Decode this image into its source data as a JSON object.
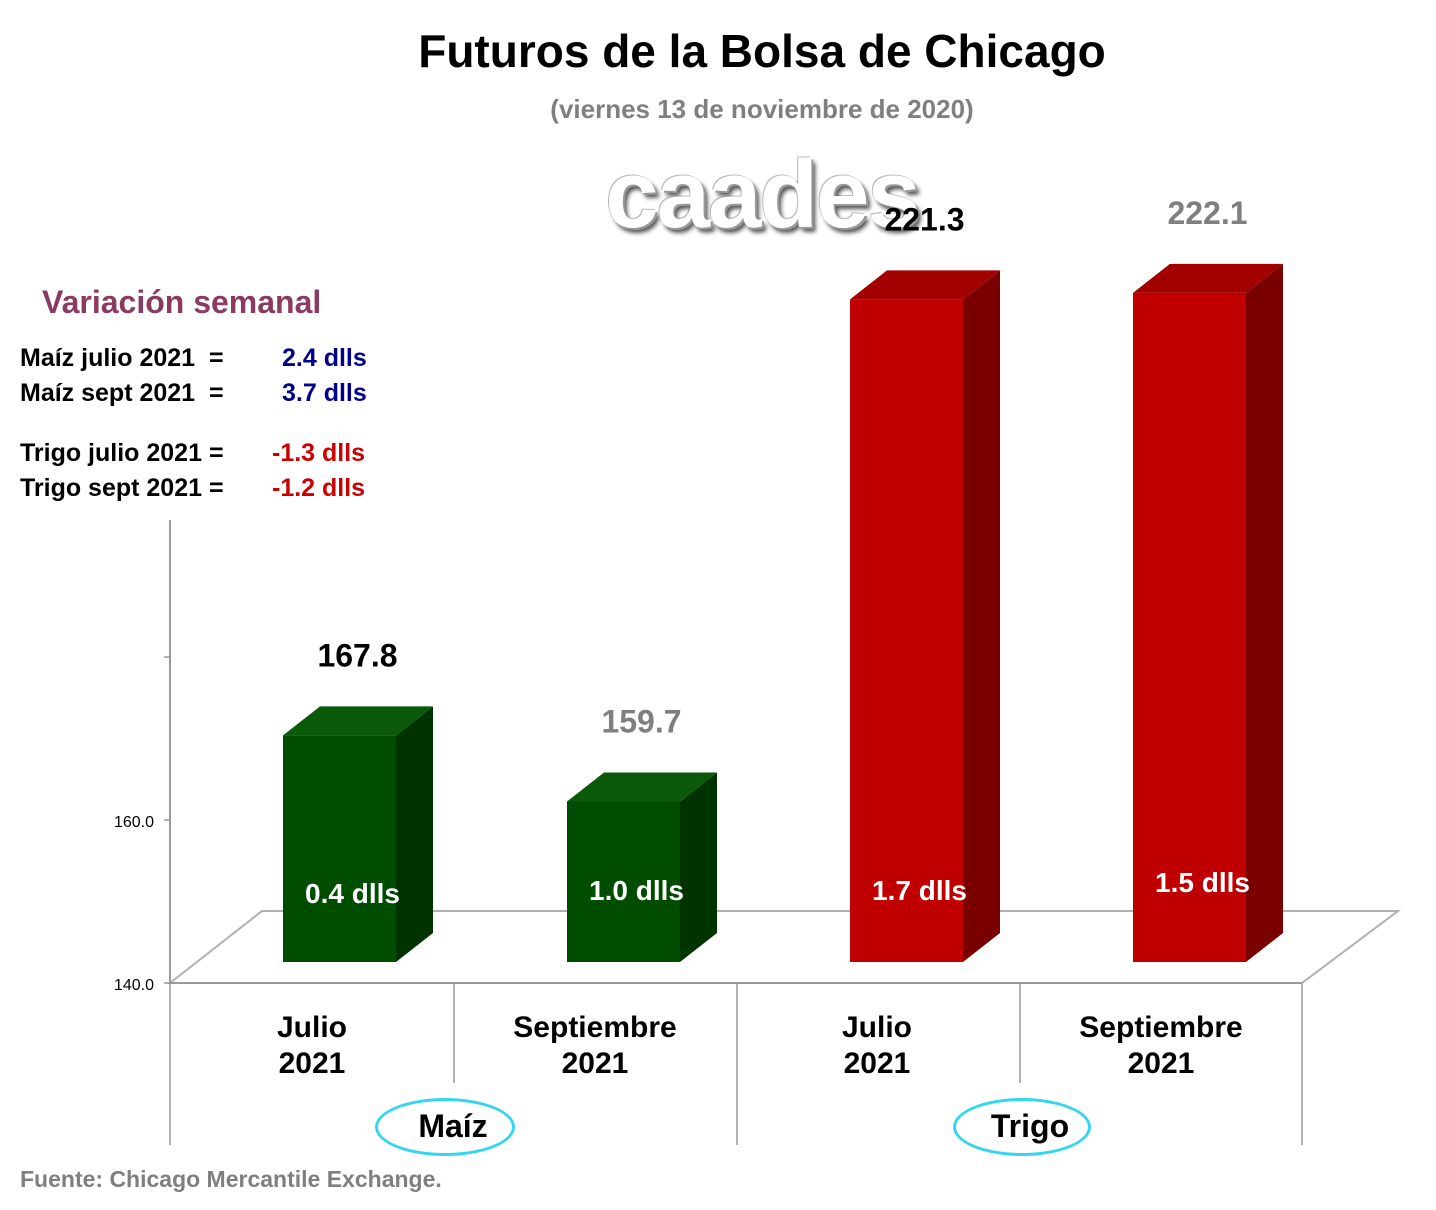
{
  "header": {
    "title": "Futuros de la Bolsa de Chicago",
    "subtitle": "(viernes 13 de noviembre de 2020)",
    "logo_text": "caades"
  },
  "variacion": {
    "title": "Variación semanal",
    "rows": [
      {
        "label": "Maíz julio 2021  =",
        "value": "2.4 dlls",
        "color": "#00008b"
      },
      {
        "label": "Maíz sept 2021  =",
        "value": "3.7 dlls",
        "color": "#00008b"
      },
      {
        "label": "Trigo julio 2021 =",
        "value": "-1.3 dlls",
        "color": "#cc0000"
      },
      {
        "label": "Trigo sept 2021 =",
        "value": "-1.2 dlls",
        "color": "#cc0000"
      }
    ]
  },
  "chart_data": {
    "type": "bar",
    "title": "Futuros de la Bolsa de Chicago",
    "subtitle": "(viernes 13 de noviembre de 2020)",
    "ylim": [
      140,
      230
    ],
    "yticks": [
      "140.0",
      "160.0"
    ],
    "categories": [
      "Julio\n2021",
      "Septiembre\n2021",
      "Julio\n2021",
      "Septiembre\n2021"
    ],
    "groups": [
      {
        "name": "Maíz",
        "categories": [
          0,
          1
        ]
      },
      {
        "name": "Trigo",
        "categories": [
          2,
          3
        ]
      }
    ],
    "values": [
      167.8,
      159.7,
      221.3,
      222.1
    ],
    "value_labels": [
      "167.8",
      "159.7",
      "221.3",
      "222.1"
    ],
    "value_label_colors": [
      "#000000",
      "#7f7f7f",
      "#000000",
      "#7f7f7f"
    ],
    "inner_labels": [
      "0.4 dlls",
      "1.0 dlls",
      "1.7 dlls",
      "1.5 dlls"
    ],
    "colors": {
      "maiz_front": "#004d00",
      "maiz_top": "#0a5a0a",
      "maiz_side": "#003300",
      "trigo_front": "#c00000",
      "trigo_top": "#a30000",
      "trigo_side": "#7a0000"
    },
    "grid": false,
    "style": "3d-bar"
  },
  "footer": {
    "source": "Fuente: Chicago Mercantile Exchange."
  }
}
